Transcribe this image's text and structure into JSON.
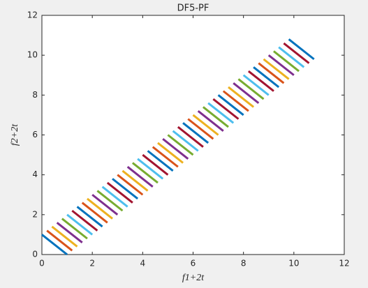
{
  "chart_data": {
    "type": "line",
    "title": "DF5-PF",
    "xlabel": "f1+2t",
    "ylabel": "f2+2t",
    "xlim": [
      0,
      12
    ],
    "ylim": [
      0,
      12
    ],
    "xticks": [
      0,
      2,
      4,
      6,
      8,
      10,
      12
    ],
    "yticks": [
      0,
      2,
      4,
      6,
      8,
      10,
      12
    ],
    "series": [
      {
        "color": "#0072bd",
        "x": [
          0.0,
          1.0
        ],
        "y": [
          1.0,
          0.0
        ]
      },
      {
        "color": "#d95319",
        "x": [
          0.2,
          1.2
        ],
        "y": [
          1.2,
          0.2
        ]
      },
      {
        "color": "#edb120",
        "x": [
          0.4,
          1.4
        ],
        "y": [
          1.4,
          0.4
        ]
      },
      {
        "color": "#7e2f8e",
        "x": [
          0.6,
          1.6
        ],
        "y": [
          1.6,
          0.6
        ]
      },
      {
        "color": "#77ac30",
        "x": [
          0.8,
          1.8
        ],
        "y": [
          1.8,
          0.8
        ]
      },
      {
        "color": "#4dbeee",
        "x": [
          1.0,
          2.0
        ],
        "y": [
          2.0,
          1.0
        ]
      },
      {
        "color": "#a2142f",
        "x": [
          1.2,
          2.2
        ],
        "y": [
          2.2,
          1.2
        ]
      },
      {
        "color": "#0072bd",
        "x": [
          1.4,
          2.4
        ],
        "y": [
          2.4,
          1.4
        ]
      },
      {
        "color": "#d95319",
        "x": [
          1.6,
          2.6
        ],
        "y": [
          2.6,
          1.6
        ]
      },
      {
        "color": "#edb120",
        "x": [
          1.8,
          2.8
        ],
        "y": [
          2.8,
          1.8
        ]
      },
      {
        "color": "#7e2f8e",
        "x": [
          2.0,
          3.0
        ],
        "y": [
          3.0,
          2.0
        ]
      },
      {
        "color": "#77ac30",
        "x": [
          2.2,
          3.2
        ],
        "y": [
          3.2,
          2.2
        ]
      },
      {
        "color": "#4dbeee",
        "x": [
          2.4,
          3.4
        ],
        "y": [
          3.4,
          2.4
        ]
      },
      {
        "color": "#a2142f",
        "x": [
          2.6,
          3.6
        ],
        "y": [
          3.6,
          2.6
        ]
      },
      {
        "color": "#0072bd",
        "x": [
          2.8,
          3.8
        ],
        "y": [
          3.8,
          2.8
        ]
      },
      {
        "color": "#d95319",
        "x": [
          3.0,
          4.0
        ],
        "y": [
          4.0,
          3.0
        ]
      },
      {
        "color": "#edb120",
        "x": [
          3.2,
          4.2
        ],
        "y": [
          4.2,
          3.2
        ]
      },
      {
        "color": "#7e2f8e",
        "x": [
          3.4,
          4.4
        ],
        "y": [
          4.4,
          3.4
        ]
      },
      {
        "color": "#77ac30",
        "x": [
          3.6,
          4.6
        ],
        "y": [
          4.6,
          3.6
        ]
      },
      {
        "color": "#4dbeee",
        "x": [
          3.8,
          4.8
        ],
        "y": [
          4.8,
          3.8
        ]
      },
      {
        "color": "#a2142f",
        "x": [
          4.0,
          5.0
        ],
        "y": [
          5.0,
          4.0
        ]
      },
      {
        "color": "#0072bd",
        "x": [
          4.2,
          5.2
        ],
        "y": [
          5.2,
          4.2
        ]
      },
      {
        "color": "#d95319",
        "x": [
          4.4,
          5.4
        ],
        "y": [
          5.4,
          4.4
        ]
      },
      {
        "color": "#edb120",
        "x": [
          4.6,
          5.6
        ],
        "y": [
          5.6,
          4.6
        ]
      },
      {
        "color": "#7e2f8e",
        "x": [
          4.8,
          5.8
        ],
        "y": [
          5.8,
          4.8
        ]
      },
      {
        "color": "#77ac30",
        "x": [
          5.0,
          6.0
        ],
        "y": [
          6.0,
          5.0
        ]
      },
      {
        "color": "#4dbeee",
        "x": [
          5.2,
          6.2
        ],
        "y": [
          6.2,
          5.2
        ]
      },
      {
        "color": "#a2142f",
        "x": [
          5.4,
          6.4
        ],
        "y": [
          6.4,
          5.4
        ]
      },
      {
        "color": "#0072bd",
        "x": [
          5.6,
          6.6
        ],
        "y": [
          6.6,
          5.6
        ]
      },
      {
        "color": "#d95319",
        "x": [
          5.8,
          6.8
        ],
        "y": [
          6.8,
          5.8
        ]
      },
      {
        "color": "#edb120",
        "x": [
          6.0,
          7.0
        ],
        "y": [
          7.0,
          6.0
        ]
      },
      {
        "color": "#7e2f8e",
        "x": [
          6.2,
          7.2
        ],
        "y": [
          7.2,
          6.2
        ]
      },
      {
        "color": "#77ac30",
        "x": [
          6.4,
          7.4
        ],
        "y": [
          7.4,
          6.4
        ]
      },
      {
        "color": "#4dbeee",
        "x": [
          6.6,
          7.6
        ],
        "y": [
          7.6,
          6.6
        ]
      },
      {
        "color": "#a2142f",
        "x": [
          6.8,
          7.8
        ],
        "y": [
          7.8,
          6.8
        ]
      },
      {
        "color": "#0072bd",
        "x": [
          7.0,
          8.0
        ],
        "y": [
          8.0,
          7.0
        ]
      },
      {
        "color": "#d95319",
        "x": [
          7.2,
          8.2
        ],
        "y": [
          8.2,
          7.2
        ]
      },
      {
        "color": "#edb120",
        "x": [
          7.4,
          8.4
        ],
        "y": [
          8.4,
          7.4
        ]
      },
      {
        "color": "#7e2f8e",
        "x": [
          7.6,
          8.6
        ],
        "y": [
          8.6,
          7.6
        ]
      },
      {
        "color": "#77ac30",
        "x": [
          7.8,
          8.8
        ],
        "y": [
          8.8,
          7.8
        ]
      },
      {
        "color": "#4dbeee",
        "x": [
          8.0,
          9.0
        ],
        "y": [
          9.0,
          8.0
        ]
      },
      {
        "color": "#a2142f",
        "x": [
          8.2,
          9.2
        ],
        "y": [
          9.2,
          8.2
        ]
      },
      {
        "color": "#0072bd",
        "x": [
          8.4,
          9.4
        ],
        "y": [
          9.4,
          8.4
        ]
      },
      {
        "color": "#d95319",
        "x": [
          8.6,
          9.6
        ],
        "y": [
          9.6,
          8.6
        ]
      },
      {
        "color": "#edb120",
        "x": [
          8.8,
          9.8
        ],
        "y": [
          9.8,
          8.8
        ]
      },
      {
        "color": "#7e2f8e",
        "x": [
          9.0,
          10.0
        ],
        "y": [
          10.0,
          9.0
        ]
      },
      {
        "color": "#77ac30",
        "x": [
          9.2,
          10.2
        ],
        "y": [
          10.2,
          9.2
        ]
      },
      {
        "color": "#4dbeee",
        "x": [
          9.4,
          10.4
        ],
        "y": [
          10.4,
          9.4
        ]
      },
      {
        "color": "#a2142f",
        "x": [
          9.6,
          10.6
        ],
        "y": [
          10.6,
          9.6
        ]
      },
      {
        "color": "#0072bd",
        "x": [
          9.8,
          10.8
        ],
        "y": [
          10.8,
          9.8
        ]
      }
    ]
  }
}
